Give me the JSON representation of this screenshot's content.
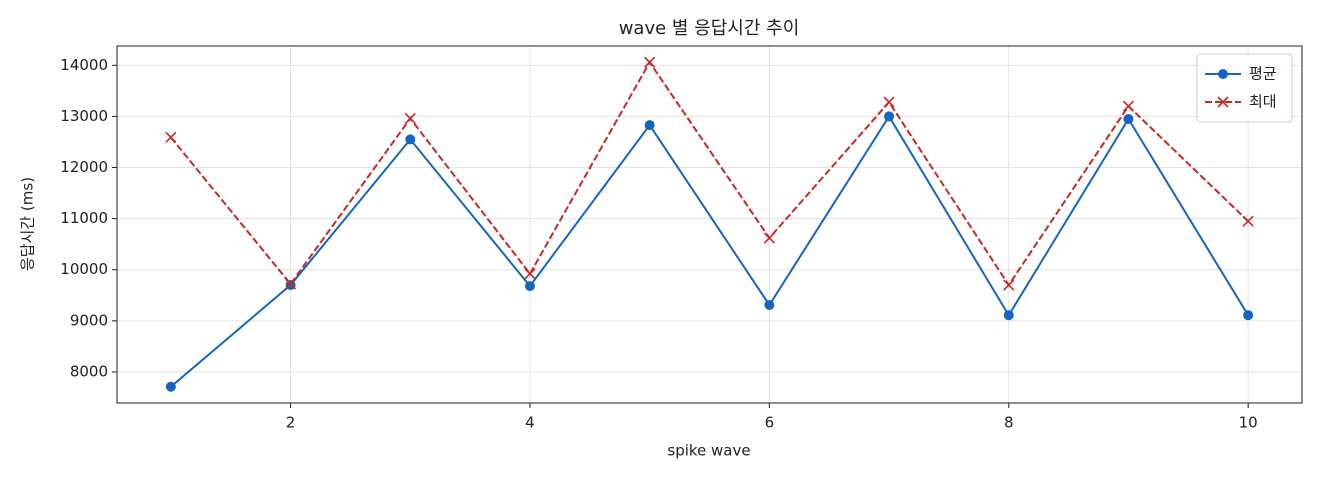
{
  "chart_data": {
    "type": "line",
    "title": "wave 별 응답시간 추이",
    "x_label": "spike wave",
    "y_label": "응답시간 (ms)",
    "x": [
      1,
      2,
      3,
      4,
      5,
      6,
      7,
      8,
      9,
      10
    ],
    "series": [
      {
        "name": "평균",
        "color": "#1565c0",
        "marker": "circle",
        "dash": "solid",
        "values": [
          7710,
          9700,
          12550,
          9680,
          12830,
          9310,
          13000,
          9110,
          12950,
          9110
        ]
      },
      {
        "name": "최대",
        "color": "#c62828",
        "marker": "x",
        "dash": "dashed",
        "values": [
          12590,
          9720,
          12960,
          9920,
          14060,
          10620,
          13280,
          9700,
          13200,
          10950
        ]
      }
    ],
    "xlim": [
      0.55,
      10.45
    ],
    "xticks": [
      2,
      4,
      6,
      8,
      10
    ],
    "ylim": [
      7392,
      14378
    ],
    "yticks": [
      8000,
      9000,
      10000,
      11000,
      12000,
      13000,
      14000
    ],
    "grid": true,
    "legend": "upper right"
  }
}
